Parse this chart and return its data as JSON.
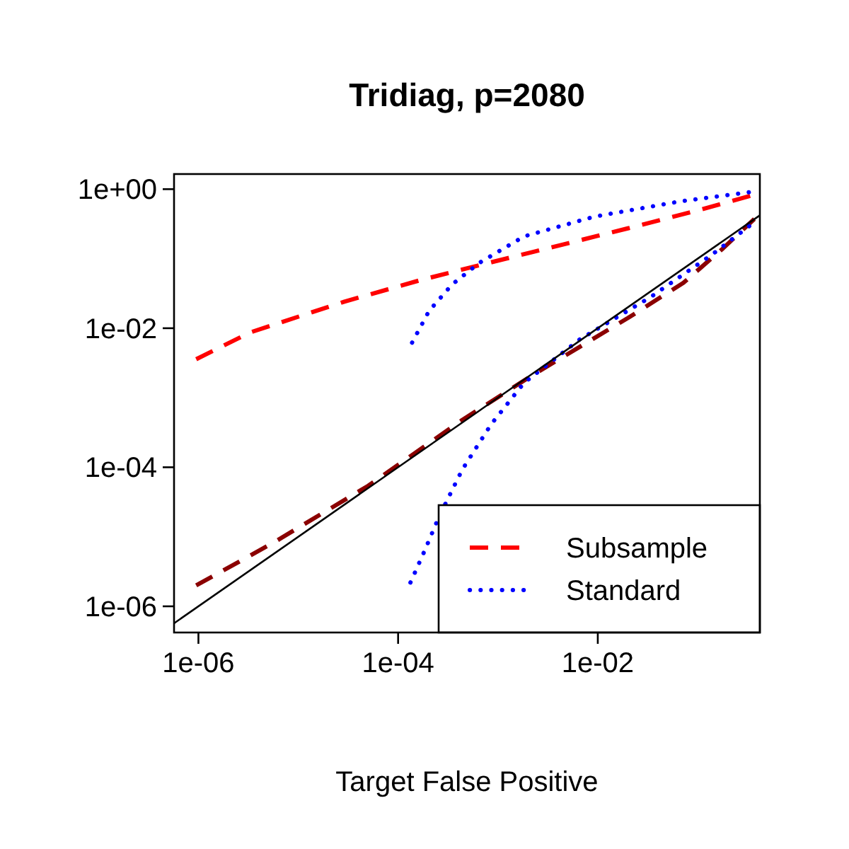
{
  "chart_data": {
    "type": "line",
    "title": "Tridiag, p=2080",
    "xlabel": "Target False Positive",
    "log": "xy",
    "legend": "bottom right",
    "xlim": [
      5.7e-07,
      0.42
    ],
    "ylim": [
      4.2e-07,
      1.65
    ],
    "xticks": [
      {
        "value": 1e-06,
        "label": "1e-06"
      },
      {
        "value": 0.0001,
        "label": "1e-04"
      },
      {
        "value": 0.01,
        "label": "1e-02"
      }
    ],
    "yticks": [
      {
        "value": 1e-06,
        "label": "1e-06"
      },
      {
        "value": 0.0001,
        "label": "1e-04"
      },
      {
        "value": 0.01,
        "label": "1e-02"
      },
      {
        "value": 1,
        "label": "1e+00"
      }
    ],
    "series": [
      {
        "name": "Subsample",
        "color": "#ff0000",
        "line_style": "dashed",
        "x": [
          9.5e-07,
          3.3e-06,
          2.9e-05,
          0.000166,
          0.00044,
          0.00224,
          0.02,
          0.0955,
          0.355
        ],
        "values": [
          0.00358,
          0.0087,
          0.0241,
          0.049,
          0.07,
          0.125,
          0.273,
          0.486,
          0.817
        ]
      },
      {
        "color": "#8b0000",
        "line_style": "dashed",
        "x": [
          9.5e-07,
          5.7e-06,
          5e-05,
          0.00044,
          0.00224,
          0.02,
          0.072,
          0.174,
          0.37
        ],
        "values": [
          2e-06,
          8.3e-06,
          5.4e-05,
          0.00048,
          0.00213,
          0.014,
          0.045,
          0.135,
          0.373
        ]
      },
      {
        "name": "Standard",
        "color": "#0000ff",
        "line_style": "dotted",
        "x": [
          0.000138,
          0.000204,
          0.000347,
          0.00065,
          0.00182,
          0.0093,
          0.066,
          0.342
        ],
        "values": [
          0.0062,
          0.0177,
          0.0425,
          0.087,
          0.209,
          0.404,
          0.665,
          0.91
        ]
      },
      {
        "color": "#0000ff",
        "line_style": "dotted",
        "x": [
          0.000133,
          0.000186,
          0.000257,
          0.00044,
          0.00085,
          0.00182,
          0.0066,
          0.034,
          0.14,
          0.38
        ],
        "values": [
          2.2e-06,
          6.5e-06,
          1.95e-05,
          9.3e-05,
          0.00041,
          0.00163,
          0.0069,
          0.0282,
          0.115,
          0.345
        ]
      },
      {
        "color": "#000000",
        "line_style": "solid",
        "x": [
          5.7e-07,
          0.42
        ],
        "values": [
          5.7e-07,
          0.42
        ]
      }
    ]
  }
}
